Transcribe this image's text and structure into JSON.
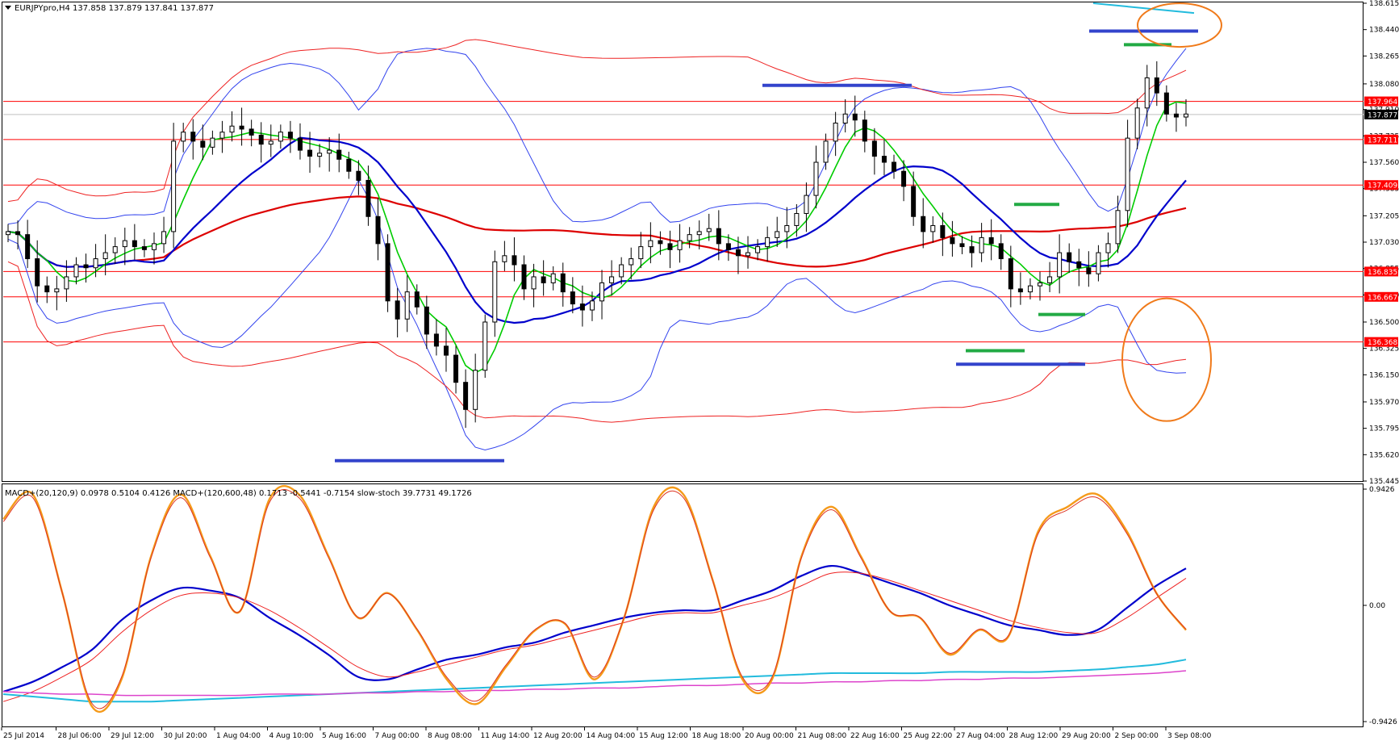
{
  "header": {
    "symbol_line": "EURJPYpro,H4  137.858 137.879 137.841 137.877"
  },
  "indicator_header": {
    "text": "MACD+(20,120,9) 0.0978 0.5104 0.4126  MACD+(120,600,48) 0.1713 -0.5441 -0.7154  slow-stoch 39.7731 49.1726"
  },
  "colors": {
    "background": "#ffffff",
    "frame": "#000000",
    "candle_bull": "#ffffff",
    "candle_bear": "#000000",
    "level_line": "#ff0000",
    "ma_green": "#00cc00",
    "ma_blue": "#0000cc",
    "ma_red": "#dd0000",
    "bollinger_blue": "#3344ee",
    "envelope_red": "#ee2222",
    "marker_blue": "#3344cc",
    "marker_green": "#22aa44",
    "annotation_orange": "#f07a1a",
    "cyan": "#22bbdd",
    "magenta": "#dd44cc",
    "stoch_orange": "#f59a1a"
  },
  "chart_data": [
    {
      "type": "candlestick",
      "title": "EURJPYpro,H4",
      "ohlc_readout": {
        "open": 137.858,
        "high": 137.879,
        "low": 137.841,
        "close": 137.877
      },
      "ylim": [
        135.445,
        138.615
      ],
      "y_ticks": [
        "138.615",
        "138.440",
        "138.265",
        "138.080",
        "137.910",
        "137.735",
        "137.560",
        "137.385",
        "137.205",
        "137.030",
        "136.855",
        "136.680",
        "136.500",
        "136.325",
        "136.150",
        "135.970",
        "135.795",
        "135.620",
        "135.445"
      ],
      "x_ticks": [
        "25 Jul 2014",
        "28 Jul 06:00",
        "29 Jul 12:00",
        "30 Jul 20:00",
        "1 Aug 04:00",
        "4 Aug 10:00",
        "5 Aug 16:00",
        "7 Aug 00:00",
        "8 Aug 08:00",
        "11 Aug 14:00",
        "12 Aug 20:00",
        "14 Aug 04:00",
        "15 Aug 12:00",
        "18 Aug 18:00",
        "20 Aug 00:00",
        "21 Aug 08:00",
        "22 Aug 16:00",
        "25 Aug 22:00",
        "27 Aug 04:00",
        "28 Aug 12:00",
        "29 Aug 20:00",
        "2 Sep 00:00",
        "3 Sep 08:00"
      ],
      "price_labels": {
        "current": "137.877",
        "levels": [
          "137.964",
          "137.711",
          "137.409",
          "136.835",
          "136.667",
          "136.368"
        ]
      },
      "horizontal_levels": [
        137.964,
        137.711,
        137.409,
        136.835,
        136.667,
        136.368
      ],
      "candles_close": [
        137.1,
        137.08,
        136.92,
        136.74,
        136.7,
        136.72,
        136.8,
        136.88,
        136.86,
        136.92,
        136.96,
        137.0,
        137.04,
        137.0,
        136.98,
        137.02,
        137.1,
        137.7,
        137.76,
        137.7,
        137.66,
        137.72,
        137.76,
        137.8,
        137.78,
        137.74,
        137.68,
        137.7,
        137.76,
        137.72,
        137.64,
        137.6,
        137.62,
        137.64,
        137.58,
        137.5,
        137.44,
        137.2,
        137.02,
        136.64,
        136.52,
        136.7,
        136.6,
        136.42,
        136.34,
        136.28,
        136.1,
        135.92,
        136.18,
        136.5,
        136.9,
        136.94,
        136.88,
        136.72,
        136.8,
        136.76,
        136.82,
        136.7,
        136.62,
        136.58,
        136.64,
        136.76,
        136.8,
        136.88,
        136.92,
        137.0,
        137.04,
        137.02,
        136.98,
        137.04,
        137.08,
        137.1,
        137.12,
        137.02,
        136.98,
        136.94,
        136.96,
        137.0,
        137.06,
        137.1,
        137.14,
        137.22,
        137.34,
        137.56,
        137.7,
        137.82,
        137.88,
        137.84,
        137.7,
        137.6,
        137.56,
        137.5,
        137.4,
        137.2,
        137.1,
        137.14,
        137.06,
        137.02,
        137.0,
        136.96,
        137.06,
        137.02,
        136.92,
        136.72,
        136.7,
        136.74,
        136.76,
        136.8,
        136.96,
        136.9,
        136.86,
        136.82,
        136.96,
        137.02,
        137.24,
        137.72,
        137.92,
        138.12,
        138.02,
        137.88,
        137.86,
        137.88
      ],
      "overlays": [
        "moving-average-green",
        "moving-average-blue",
        "moving-average-red",
        "bollinger-bands-blue",
        "envelope-red"
      ],
      "annotations": [
        "blue horizontal markers",
        "green horizontal markers",
        "orange ellipses"
      ]
    },
    {
      "type": "line",
      "title": "MACD+(20,120,9) / MACD+(120,600,48) / slow-stoch",
      "y_ticks": [
        "0.9426",
        "0.00",
        "-0.9426"
      ],
      "ylim": [
        -0.9426,
        0.9426
      ],
      "series": [
        {
          "name": "MACD+(20,120,9)",
          "color": "#0000cc",
          "values": [
            -0.7,
            -0.62,
            -0.5,
            -0.36,
            -0.12,
            0.04,
            0.14,
            0.12,
            0.06,
            -0.1,
            -0.24,
            -0.4,
            -0.58,
            -0.6,
            -0.52,
            -0.44,
            -0.4,
            -0.34,
            -0.3,
            -0.22,
            -0.16,
            -0.1,
            -0.06,
            -0.04,
            -0.04,
            0.04,
            0.12,
            0.24,
            0.32,
            0.26,
            0.18,
            0.1,
            0.0,
            -0.08,
            -0.16,
            -0.2,
            -0.24,
            -0.2,
            -0.02,
            0.16,
            0.3
          ]
        },
        {
          "name": "signal",
          "color": "#ee2222",
          "values": [
            -0.78,
            -0.7,
            -0.58,
            -0.44,
            -0.22,
            -0.04,
            0.08,
            0.1,
            0.06,
            -0.04,
            -0.18,
            -0.34,
            -0.5,
            -0.58,
            -0.54,
            -0.48,
            -0.42,
            -0.36,
            -0.32,
            -0.26,
            -0.2,
            -0.14,
            -0.08,
            -0.06,
            -0.06,
            0.0,
            0.06,
            0.16,
            0.26,
            0.26,
            0.2,
            0.12,
            0.04,
            -0.04,
            -0.12,
            -0.18,
            -0.22,
            -0.22,
            -0.1,
            0.06,
            0.22
          ]
        },
        {
          "name": "MACD+(120,600,48)",
          "color": "#22bbdd",
          "values": [
            -0.72,
            -0.74,
            -0.76,
            -0.78,
            -0.78,
            -0.78,
            -0.77,
            -0.76,
            -0.75,
            -0.74,
            -0.73,
            -0.72,
            -0.71,
            -0.7,
            -0.69,
            -0.68,
            -0.67,
            -0.66,
            -0.65,
            -0.64,
            -0.63,
            -0.62,
            -0.61,
            -0.6,
            -0.59,
            -0.58,
            -0.57,
            -0.56,
            -0.55,
            -0.55,
            -0.55,
            -0.55,
            -0.54,
            -0.54,
            -0.54,
            -0.54,
            -0.53,
            -0.52,
            -0.5,
            -0.48,
            -0.44
          ]
        },
        {
          "name": "MACD+(120,600,48) signal",
          "color": "#dd44cc",
          "values": [
            -0.7,
            -0.71,
            -0.72,
            -0.72,
            -0.73,
            -0.73,
            -0.73,
            -0.73,
            -0.73,
            -0.72,
            -0.72,
            -0.72,
            -0.71,
            -0.71,
            -0.7,
            -0.7,
            -0.69,
            -0.69,
            -0.68,
            -0.68,
            -0.67,
            -0.67,
            -0.66,
            -0.65,
            -0.65,
            -0.64,
            -0.63,
            -0.63,
            -0.62,
            -0.62,
            -0.61,
            -0.61,
            -0.6,
            -0.6,
            -0.59,
            -0.59,
            -0.58,
            -0.57,
            -0.56,
            -0.55,
            -0.53
          ]
        },
        {
          "name": "slow-stoch",
          "color": "#f59a1a",
          "values": [
            0.7,
            0.9,
            0.1,
            -0.82,
            -0.6,
            0.4,
            0.9,
            0.4,
            -0.05,
            0.86,
            0.9,
            0.4,
            -0.1,
            0.1,
            -0.2,
            -0.6,
            -0.8,
            -0.5,
            -0.2,
            -0.15,
            -0.6,
            -0.1,
            0.8,
            0.9,
            0.2,
            -0.6,
            -0.6,
            0.4,
            0.8,
            0.4,
            -0.05,
            -0.1,
            -0.4,
            -0.2,
            -0.25,
            0.6,
            0.8,
            0.9,
            0.6,
            0.1,
            -0.2
          ]
        }
      ]
    }
  ]
}
